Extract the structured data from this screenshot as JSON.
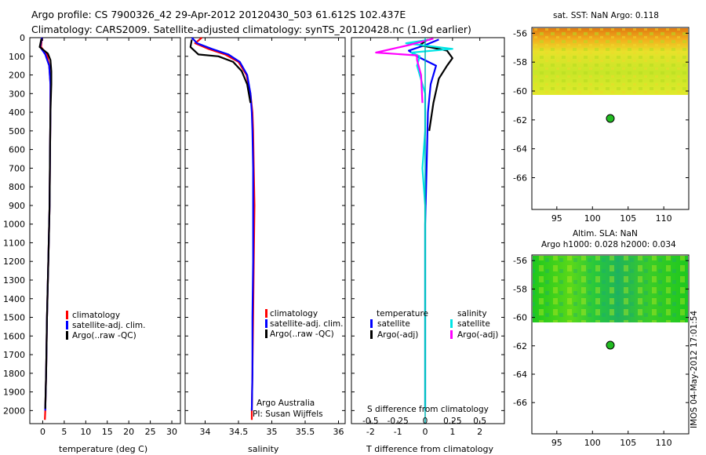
{
  "header": {
    "line1": "Argo profile: CS 7900326_42 29-Apr-2012 20120430_503 61.612S 102.437E",
    "line2": "Climatology: CARS2009. Satellite-adjusted climatology: synTS_20120428.nc (1.9d earlier)"
  },
  "colors": {
    "climatology": "#ff0000",
    "satellite": "#0000ff",
    "argo": "#000000",
    "sat_salinity": "#00e5e5",
    "argo_salinity": "#ff00ff",
    "marker": "#22bb22"
  },
  "footer_vertical": "IMOS 04-May-2012 17:01:54",
  "chart_data": [
    {
      "type": "line",
      "name": "temperature",
      "xlabel": "temperature (deg C)",
      "xlim": [
        -3,
        32
      ],
      "ylim": [
        0,
        2070
      ],
      "xticks": [
        "0",
        "5",
        "10",
        "15",
        "20",
        "25",
        "30"
      ],
      "xtick_values": [
        0,
        5,
        10,
        15,
        20,
        25,
        30
      ],
      "yticks": [
        "0",
        "100",
        "200",
        "300",
        "400",
        "500",
        "600",
        "700",
        "800",
        "900",
        "1000",
        "1100",
        "1200",
        "1300",
        "1400",
        "1500",
        "1600",
        "1700",
        "1800",
        "1900",
        "2000"
      ],
      "legend": {
        "items": [
          "climatology",
          "satellite-adj. clim.",
          "Argo(..raw -QC)"
        ],
        "placement": "lower-middle"
      },
      "series": [
        {
          "name": "climatology",
          "color": "#ff0000",
          "points": [
            [
              -0.2,
              0
            ],
            [
              -0.4,
              50
            ],
            [
              1.0,
              90
            ],
            [
              1.5,
              150
            ],
            [
              1.8,
              250
            ],
            [
              1.8,
              400
            ],
            [
              1.7,
              600
            ],
            [
              1.6,
              900
            ],
            [
              1.3,
              1200
            ],
            [
              1.0,
              1500
            ],
            [
              0.8,
              1800
            ],
            [
              0.6,
              2000
            ],
            [
              0.5,
              2050
            ]
          ]
        },
        {
          "name": "satellite-adj. clim.",
          "color": "#0000ff",
          "points": [
            [
              -0.2,
              0
            ],
            [
              -0.6,
              50
            ],
            [
              0.6,
              90
            ],
            [
              1.5,
              150
            ],
            [
              1.8,
              250
            ],
            [
              1.8,
              400
            ],
            [
              1.7,
              600
            ],
            [
              1.6,
              900
            ],
            [
              1.3,
              1200
            ],
            [
              1.0,
              1500
            ],
            [
              0.8,
              1800
            ],
            [
              0.6,
              2000
            ]
          ]
        },
        {
          "name": "Argo(..raw -QC)",
          "color": "#000000",
          "points": [
            [
              -0.3,
              5
            ],
            [
              -0.7,
              50
            ],
            [
              1.2,
              85
            ],
            [
              1.8,
              120
            ],
            [
              2.0,
              180
            ],
            [
              2.0,
              250
            ],
            [
              1.8,
              400
            ],
            [
              1.7,
              600
            ],
            [
              1.6,
              900
            ],
            [
              1.3,
              1200
            ],
            [
              1.0,
              1500
            ],
            [
              0.8,
              1800
            ],
            [
              0.6,
              1990
            ]
          ]
        }
      ]
    },
    {
      "type": "line",
      "name": "salinity",
      "xlabel": "salinity",
      "xlim": [
        33.7,
        36.1
      ],
      "ylim": [
        0,
        2070
      ],
      "xticks": [
        "34",
        "34.5",
        "35",
        "35.5",
        "36"
      ],
      "xtick_values": [
        34,
        34.5,
        35,
        35.5,
        36
      ],
      "legend": {
        "items": [
          "climatology",
          "satellite-adj. clim.",
          "Argo(..raw -QC)"
        ],
        "placement": "lower-middle"
      },
      "annotation": [
        "Argo Australia",
        "PI: Susan Wijffels"
      ],
      "series": [
        {
          "name": "climatology",
          "color": "#ff0000",
          "points": [
            [
              33.95,
              0
            ],
            [
              33.85,
              30
            ],
            [
              34.05,
              60
            ],
            [
              34.3,
              90
            ],
            [
              34.5,
              130
            ],
            [
              34.62,
              200
            ],
            [
              34.68,
              300
            ],
            [
              34.71,
              400
            ],
            [
              34.72,
              500
            ],
            [
              34.73,
              700
            ],
            [
              34.74,
              900
            ],
            [
              34.73,
              1200
            ],
            [
              34.72,
              1500
            ],
            [
              34.71,
              1800
            ],
            [
              34.7,
              2000
            ],
            [
              34.7,
              2050
            ]
          ]
        },
        {
          "name": "satellite-adj. clim.",
          "color": "#0000ff",
          "points": [
            [
              33.8,
              0
            ],
            [
              33.88,
              30
            ],
            [
              34.1,
              60
            ],
            [
              34.35,
              90
            ],
            [
              34.52,
              130
            ],
            [
              34.63,
              200
            ],
            [
              34.68,
              300
            ],
            [
              34.7,
              400
            ],
            [
              34.71,
              500
            ],
            [
              34.72,
              700
            ],
            [
              34.72,
              900
            ],
            [
              34.72,
              1200
            ],
            [
              34.71,
              1500
            ],
            [
              34.71,
              1800
            ],
            [
              34.7,
              2000
            ]
          ]
        },
        {
          "name": "Argo(..raw -QC)",
          "color": "#000000",
          "points": [
            [
              33.8,
              10
            ],
            [
              33.78,
              50
            ],
            [
              33.9,
              90
            ],
            [
              34.2,
              100
            ],
            [
              34.42,
              130
            ],
            [
              34.55,
              180
            ],
            [
              34.63,
              250
            ],
            [
              34.68,
              350
            ]
          ]
        }
      ]
    },
    {
      "type": "line",
      "name": "difference",
      "xlabel": "T difference from climatology",
      "top_label": "S difference from climatology",
      "xlim": [
        -2.7,
        2.9
      ],
      "ylim": [
        0,
        2070
      ],
      "xticks": [
        "-2",
        "-1",
        "0",
        "1",
        "2"
      ],
      "xtick_values": [
        -2,
        -1,
        0,
        1,
        2
      ],
      "top_ticks": [
        "-0.5",
        "-0.25",
        "0",
        "0.25",
        "0.5"
      ],
      "top_tick_values": [
        -2,
        -1,
        0,
        1,
        2
      ],
      "legend": {
        "temperature_title": "temperature",
        "salinity_title": "salinity",
        "items": [
          "satellite",
          "Argo(-adj)",
          "satellite",
          "Argo(-adj)"
        ]
      },
      "series": [
        {
          "name": "T satellite",
          "color": "#0000ff",
          "points": [
            [
              0.5,
              10
            ],
            [
              0.0,
              40
            ],
            [
              -0.6,
              70
            ],
            [
              -0.3,
              100
            ],
            [
              0.4,
              150
            ],
            [
              0.2,
              250
            ],
            [
              0.1,
              400
            ],
            [
              0.05,
              700
            ],
            [
              0.0,
              1000
            ],
            [
              0.0,
              1500
            ],
            [
              0.0,
              2000
            ]
          ]
        },
        {
          "name": "T Argo(-adj)",
          "color": "#000000",
          "points": [
            [
              0.1,
              10
            ],
            [
              -0.2,
              40
            ],
            [
              0.8,
              70
            ],
            [
              1.0,
              110
            ],
            [
              0.8,
              150
            ],
            [
              0.5,
              220
            ],
            [
              0.3,
              350
            ],
            [
              0.15,
              500
            ]
          ]
        },
        {
          "name": "S satellite",
          "color": "#00e5e5",
          "points": [
            [
              0.2,
              10
            ],
            [
              -0.7,
              30
            ],
            [
              1.0,
              60
            ],
            [
              -0.5,
              80
            ],
            [
              -0.2,
              100
            ],
            [
              -0.3,
              150
            ],
            [
              0.0,
              300
            ],
            [
              0.0,
              500
            ],
            [
              -0.1,
              700
            ],
            [
              0.0,
              900
            ],
            [
              0.0,
              1200
            ],
            [
              0.0,
              1500
            ],
            [
              0.0,
              2000
            ]
          ]
        },
        {
          "name": "S Argo(-adj)",
          "color": "#ff00ff",
          "points": [
            [
              0.3,
              5
            ],
            [
              -0.6,
              40
            ],
            [
              -1.8,
              80
            ],
            [
              -0.3,
              95
            ],
            [
              -0.3,
              120
            ],
            [
              -0.15,
              200
            ],
            [
              -0.1,
              350
            ]
          ]
        }
      ]
    },
    {
      "type": "heatmap",
      "name": "sst_map",
      "title": "sat. SST: NaN Argo: 0.118",
      "xticks": [
        "95",
        "100",
        "105",
        "110"
      ],
      "yticks": [
        "-56",
        "-58",
        "-60",
        "-62",
        "-64",
        "-66"
      ],
      "xlim": [
        91.5,
        113.5
      ],
      "ylim": [
        -68.2,
        -55.6
      ],
      "data_extent": {
        "lat_min": -60.2,
        "lat_max": -55.6
      },
      "argo_location": [
        102.437,
        -61.612
      ]
    },
    {
      "type": "heatmap",
      "name": "sla_map",
      "title_line1": "Altim. SLA: NaN",
      "title_line2": "Argo h1000: 0.028 h2000: 0.034",
      "xticks": [
        "95",
        "100",
        "105",
        "110"
      ],
      "yticks": [
        "-56",
        "-58",
        "-60",
        "-62",
        "-64",
        "-66"
      ],
      "xlim": [
        91.5,
        113.5
      ],
      "ylim": [
        -68.2,
        -55.6
      ],
      "data_extent": {
        "lat_min": -60.2,
        "lat_max": -55.6
      },
      "argo_location": [
        102.437,
        -61.612
      ]
    }
  ]
}
